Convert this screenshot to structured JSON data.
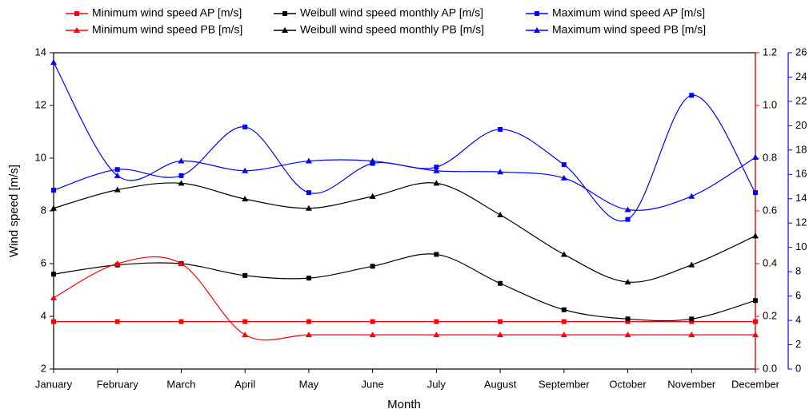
{
  "chart_data": {
    "type": "line",
    "x_label": "Month",
    "y_label": "Wind speed [m/s]",
    "categories": [
      "January",
      "February",
      "March",
      "April",
      "May",
      "June",
      "July",
      "August",
      "September",
      "October",
      "November",
      "December"
    ],
    "ylim": [
      2,
      14
    ],
    "yticks": [
      2,
      4,
      6,
      8,
      10,
      12,
      14
    ],
    "y2lim": [
      0,
      1.2
    ],
    "y2ticks": [
      {
        "value": 0,
        "label": "0.0"
      },
      0.2,
      0.4,
      0.6,
      0.8,
      {
        "value": 1,
        "label": "1.0"
      },
      1.2
    ],
    "y2color": "#ff0000",
    "y3lim": [
      0,
      26
    ],
    "y3ticks": [
      0,
      2,
      4,
      6,
      8,
      10,
      12,
      14,
      16,
      18,
      20,
      22,
      24,
      26
    ],
    "y3color": "#0000ff",
    "series": [
      {
        "name": "Minimum wind speed AP [m/s]",
        "color": "#ff0000",
        "marker": "square",
        "axis": "y2",
        "values": [
          0.18,
          0.18,
          0.18,
          0.18,
          0.18,
          0.18,
          0.18,
          0.18,
          0.18,
          0.18,
          0.18,
          0.18
        ]
      },
      {
        "name": "Weibull wind speed monthly AP [m/s]",
        "color": "#000000",
        "marker": "square",
        "axis": "y",
        "values": [
          5.6,
          5.95,
          6.0,
          5.55,
          5.45,
          5.9,
          6.35,
          5.25,
          4.25,
          3.9,
          3.9,
          4.6
        ]
      },
      {
        "name": "Maximum wind speed AP [m/s]",
        "color": "#0000ff",
        "marker": "square",
        "axis": "y3",
        "values": [
          14.7,
          16.4,
          15.9,
          19.9,
          14.5,
          16.9,
          16.6,
          19.7,
          16.8,
          12.3,
          22.5,
          14.5
        ]
      },
      {
        "name": "Minimum wind speed PB [m/s]",
        "color": "#ff0000",
        "marker": "triangle",
        "axis": "y2",
        "values": [
          0.27,
          0.4,
          0.4,
          0.13,
          0.13,
          0.13,
          0.13,
          0.13,
          0.13,
          0.13,
          0.13,
          0.13
        ]
      },
      {
        "name": "Weibull wind speed monthly PB [m/s]",
        "color": "#000000",
        "marker": "triangle",
        "axis": "y",
        "values": [
          8.1,
          8.8,
          9.05,
          8.45,
          8.1,
          8.55,
          9.05,
          7.85,
          6.35,
          5.3,
          5.95,
          7.05
        ]
      },
      {
        "name": "Maximum wind speed PB [m/s]",
        "color": "#0000ff",
        "marker": "triangle",
        "axis": "y3",
        "values": [
          25.2,
          15.9,
          17.1,
          16.3,
          17.1,
          17.1,
          16.3,
          16.2,
          15.7,
          13.1,
          14.2,
          17.4
        ]
      }
    ]
  }
}
